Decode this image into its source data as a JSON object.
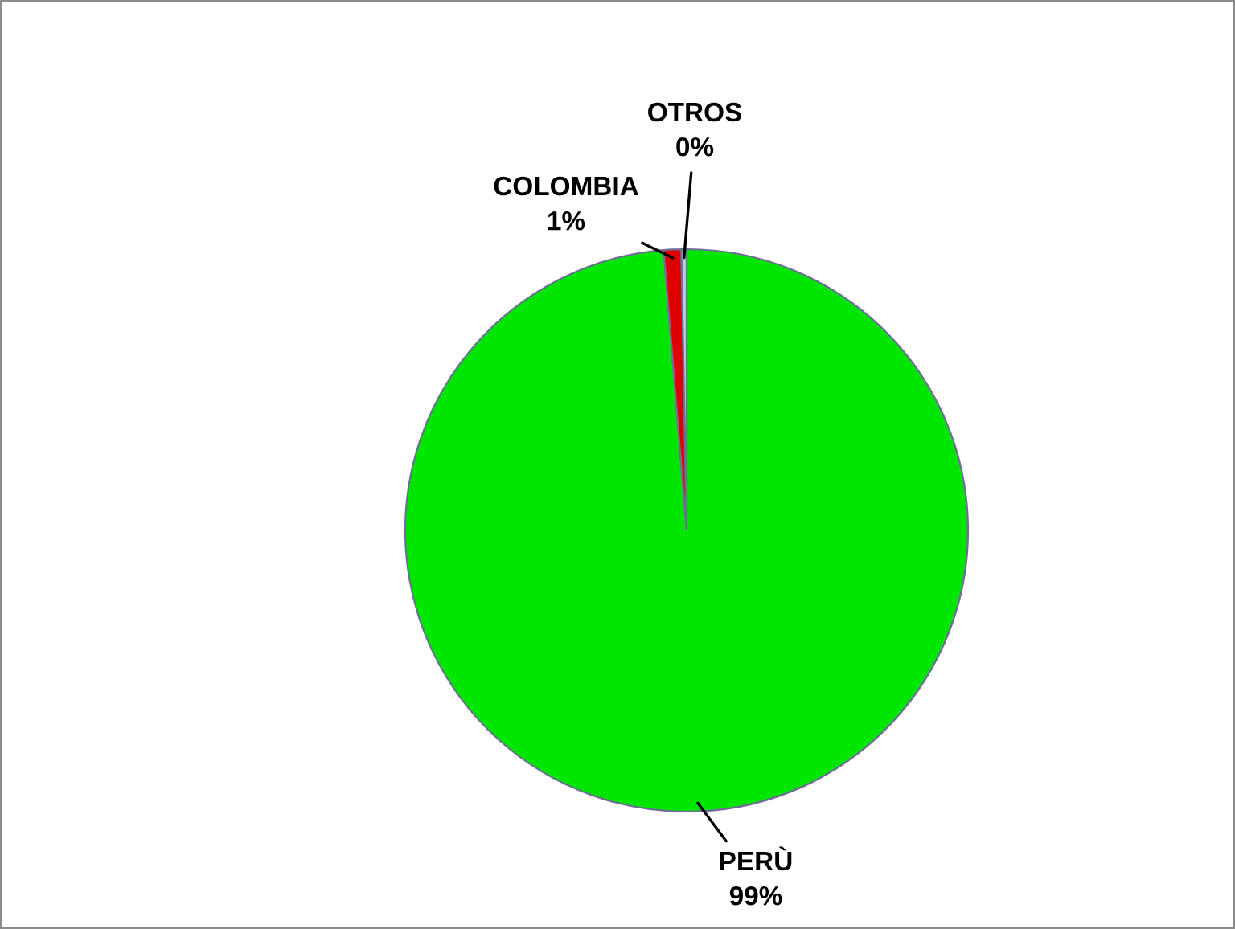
{
  "chart_data": {
    "type": "pie",
    "categories": [
      "PERÙ",
      "COLOMBIA",
      "OTROS"
    ],
    "values": [
      98.7,
      1.0,
      0.3
    ],
    "value_labels": [
      "99%",
      "1%",
      "0%"
    ],
    "colors": [
      "#00e600",
      "#e00000",
      "#b8cce4"
    ]
  }
}
